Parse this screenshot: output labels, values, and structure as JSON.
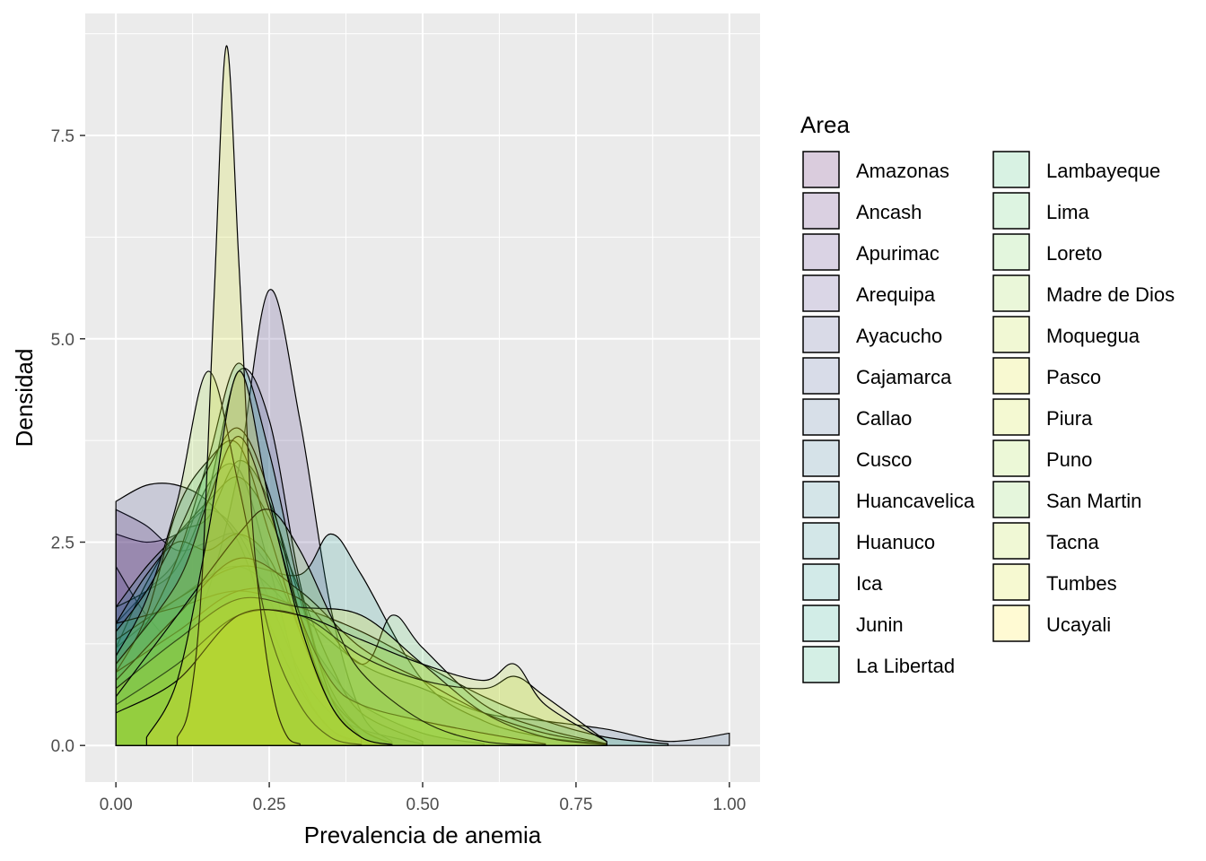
{
  "chart_data": {
    "type": "area",
    "subtype": "density",
    "title": "",
    "xlabel": "Prevalencia de anemia",
    "ylabel": "Densidad",
    "xlim": [
      -0.05,
      1.05
    ],
    "ylim": [
      -0.45,
      9.0
    ],
    "x_ticks": [
      0.0,
      0.25,
      0.5,
      0.75,
      1.0
    ],
    "x_tick_labels": [
      "0.00",
      "0.25",
      "0.50",
      "0.75",
      "1.00"
    ],
    "y_ticks": [
      0.0,
      2.5,
      5.0,
      7.5
    ],
    "y_tick_labels": [
      "0.0",
      "2.5",
      "5.0",
      "7.5"
    ],
    "grid": true,
    "fill_opacity": 0.2,
    "legend": {
      "title": "Area",
      "position": "right",
      "columns": 2,
      "entries": [
        "Amazonas",
        "Ancash",
        "Apurimac",
        "Arequipa",
        "Ayacucho",
        "Cajamarca",
        "Callao",
        "Cusco",
        "Huancavelica",
        "Huanuco",
        "Ica",
        "Junin",
        "La Libertad",
        "Lambayeque",
        "Lima",
        "Loreto",
        "Madre de Dios",
        "Moquegua",
        "Pasco",
        "Piura",
        "Puno",
        "San Martin",
        "Tacna",
        "Tumbes",
        "Ucayali"
      ]
    },
    "series": [
      {
        "name": "Amazonas",
        "color": "#440154",
        "x": [
          0,
          0.05,
          0.1,
          0.15,
          0.2,
          0.25,
          0.3,
          0.35,
          0.4,
          0.45,
          0.5
        ],
        "y": [
          2.6,
          2.5,
          2.6,
          2.9,
          2.6,
          1.8,
          0.9,
          0.4,
          0.2,
          0.1,
          0.02
        ]
      },
      {
        "name": "Ancash",
        "color": "#481467",
        "x": [
          0,
          0.05,
          0.1,
          0.15,
          0.2,
          0.25,
          0.3,
          0.35,
          0.4,
          0.5,
          0.6
        ],
        "y": [
          2.9,
          2.7,
          2.4,
          2.5,
          2.6,
          2.2,
          1.5,
          0.9,
          0.5,
          0.15,
          0.02
        ]
      },
      {
        "name": "Apurimac",
        "color": "#482576",
        "x": [
          0,
          0.05,
          0.1,
          0.15,
          0.2,
          0.25,
          0.3,
          0.35,
          0.4
        ],
        "y": [
          1.5,
          1.9,
          2.3,
          3.2,
          3.4,
          2.2,
          0.8,
          0.2,
          0.02
        ]
      },
      {
        "name": "Arequipa",
        "color": "#463480",
        "x": [
          0,
          0.05,
          0.1,
          0.15,
          0.2,
          0.25,
          0.3,
          0.35,
          0.4,
          0.45
        ],
        "y": [
          2.2,
          1.6,
          1.3,
          1.9,
          3.4,
          5.6,
          4.0,
          1.7,
          0.4,
          0.05
        ]
      },
      {
        "name": "Ayacucho",
        "color": "#414487",
        "x": [
          0,
          0.05,
          0.1,
          0.15,
          0.2,
          0.25,
          0.3,
          0.35,
          0.4,
          0.45
        ],
        "y": [
          3.0,
          3.2,
          3.2,
          3.0,
          2.5,
          1.5,
          0.7,
          0.2,
          0.05,
          0.01
        ]
      },
      {
        "name": "Cajamarca",
        "color": "#3B528B",
        "x": [
          0,
          0.05,
          0.1,
          0.15,
          0.2,
          0.25,
          0.3,
          0.35,
          0.4,
          0.45
        ],
        "y": [
          1.7,
          1.9,
          2.2,
          3.1,
          4.6,
          4.0,
          2.0,
          0.6,
          0.1,
          0.01
        ]
      },
      {
        "name": "Callao",
        "color": "#355F8D",
        "x": [
          0,
          0.1,
          0.2,
          0.3,
          0.4,
          0.5,
          0.6,
          0.7,
          0.8,
          0.9,
          1.0
        ],
        "y": [
          1.2,
          1.8,
          2.2,
          1.6,
          1.0,
          0.7,
          0.4,
          0.3,
          0.2,
          0.05,
          0.15
        ]
      },
      {
        "name": "Cusco",
        "color": "#2E6E8E",
        "x": [
          0,
          0.05,
          0.1,
          0.15,
          0.2,
          0.25,
          0.3,
          0.35,
          0.4,
          0.45
        ],
        "y": [
          1.2,
          2.0,
          2.6,
          2.8,
          3.5,
          3.0,
          1.8,
          0.7,
          0.2,
          0.03
        ]
      },
      {
        "name": "Huancavelica",
        "color": "#297B8E",
        "x": [
          0,
          0.05,
          0.1,
          0.15,
          0.2,
          0.25,
          0.3,
          0.35,
          0.4,
          0.5
        ],
        "y": [
          1.7,
          2.2,
          2.6,
          3.0,
          3.3,
          2.8,
          1.9,
          1.0,
          0.4,
          0.05
        ]
      },
      {
        "name": "Huanuco",
        "color": "#23898E",
        "x": [
          0,
          0.05,
          0.1,
          0.15,
          0.2,
          0.25,
          0.3,
          0.35,
          0.4,
          0.45
        ],
        "y": [
          1.5,
          2.1,
          2.5,
          2.4,
          2.6,
          2.3,
          1.4,
          0.6,
          0.2,
          0.02
        ]
      },
      {
        "name": "Ica",
        "color": "#1F968B",
        "x": [
          0,
          0.1,
          0.2,
          0.3,
          0.35,
          0.4,
          0.5,
          0.6,
          0.7,
          0.8
        ],
        "y": [
          1.3,
          1.8,
          2.2,
          2.1,
          2.6,
          2.1,
          0.8,
          0.3,
          0.1,
          0.02
        ]
      },
      {
        "name": "Junin",
        "color": "#20A386",
        "x": [
          0,
          0.05,
          0.1,
          0.15,
          0.2,
          0.25,
          0.3,
          0.35,
          0.4
        ],
        "y": [
          1.0,
          1.5,
          2.3,
          3.5,
          4.7,
          3.6,
          1.9,
          0.6,
          0.1
        ]
      },
      {
        "name": "La Libertad",
        "color": "#29AF7F",
        "x": [
          0,
          0.1,
          0.2,
          0.3,
          0.4,
          0.5,
          0.6,
          0.7,
          0.8,
          0.9
        ],
        "y": [
          1.5,
          1.7,
          1.9,
          1.7,
          1.4,
          1.0,
          0.6,
          0.3,
          0.1,
          0.02
        ]
      },
      {
        "name": "Lambayeque",
        "color": "#3CBC75",
        "x": [
          0,
          0.05,
          0.1,
          0.15,
          0.2,
          0.25,
          0.3,
          0.35,
          0.4,
          0.45
        ],
        "y": [
          0.9,
          1.6,
          2.9,
          3.5,
          3.7,
          2.6,
          1.4,
          0.5,
          0.1,
          0.01
        ]
      },
      {
        "name": "Lima",
        "color": "#56C667",
        "x": [
          0,
          0.1,
          0.2,
          0.3,
          0.4,
          0.45,
          0.5,
          0.6,
          0.7,
          0.8
        ],
        "y": [
          0.9,
          1.4,
          1.9,
          1.8,
          1.0,
          1.6,
          1.2,
          0.5,
          0.2,
          0.02
        ]
      },
      {
        "name": "Loreto",
        "color": "#75D054",
        "x": [
          0,
          0.05,
          0.1,
          0.15,
          0.2,
          0.25,
          0.3,
          0.35,
          0.4,
          0.45
        ],
        "y": [
          1.4,
          1.9,
          2.6,
          3.4,
          3.9,
          3.1,
          1.6,
          0.5,
          0.1,
          0.01
        ]
      },
      {
        "name": "Madre de Dios",
        "color": "#95D840",
        "x": [
          0,
          0.1,
          0.2,
          0.3,
          0.4,
          0.5,
          0.6,
          0.7,
          0.8
        ],
        "y": [
          0.8,
          1.6,
          2.3,
          1.9,
          1.2,
          0.8,
          0.4,
          0.15,
          0.02
        ]
      },
      {
        "name": "Moquegua",
        "color": "#B8DE29",
        "x": [
          0,
          0.1,
          0.15,
          0.2,
          0.25,
          0.3,
          0.35,
          0.4,
          0.5,
          0.6,
          0.7
        ],
        "y": [
          1.0,
          2.0,
          3.0,
          3.8,
          2.9,
          1.6,
          0.8,
          0.5,
          0.3,
          0.15,
          0.02
        ]
      },
      {
        "name": "Pasco",
        "color": "#DCE318",
        "x": [
          0,
          0.1,
          0.2,
          0.3,
          0.4,
          0.5,
          0.6,
          0.7,
          0.8
        ],
        "y": [
          0.7,
          1.3,
          1.8,
          1.7,
          1.6,
          1.0,
          0.4,
          0.1,
          0.01
        ]
      },
      {
        "name": "Piura",
        "color": "#C8E020",
        "x": [
          0,
          0.1,
          0.2,
          0.3,
          0.4,
          0.5,
          0.6,
          0.65,
          0.7,
          0.8
        ],
        "y": [
          0.5,
          1.0,
          1.6,
          1.6,
          1.1,
          0.8,
          0.7,
          0.85,
          0.6,
          0.05
        ]
      },
      {
        "name": "Puno",
        "color": "#A0DA39",
        "x": [
          0,
          0.05,
          0.1,
          0.15,
          0.2,
          0.25,
          0.3,
          0.35,
          0.4
        ],
        "y": [
          1.1,
          1.8,
          3.0,
          4.6,
          3.2,
          1.4,
          0.5,
          0.1,
          0.01
        ]
      },
      {
        "name": "San Martin",
        "color": "#7FD34E",
        "x": [
          0,
          0.1,
          0.2,
          0.25,
          0.3,
          0.35,
          0.4,
          0.5,
          0.6,
          0.7
        ],
        "y": [
          0.6,
          1.6,
          2.6,
          2.9,
          2.4,
          1.6,
          0.9,
          0.3,
          0.05,
          0.01
        ]
      },
      {
        "name": "Tacna",
        "color": "#B5DE2B",
        "x": [
          0,
          0.1,
          0.2,
          0.3,
          0.4,
          0.5,
          0.6,
          0.65,
          0.7,
          0.8
        ],
        "y": [
          0.4,
          0.8,
          1.6,
          1.6,
          1.3,
          1.0,
          0.8,
          1.0,
          0.5,
          0.05
        ]
      },
      {
        "name": "Tumbes",
        "color": "#D2E21B",
        "x": [
          0.1,
          0.12,
          0.14,
          0.16,
          0.18,
          0.2,
          0.22,
          0.24,
          0.26,
          0.28,
          0.3
        ],
        "y": [
          0.1,
          0.5,
          2.0,
          5.5,
          8.6,
          6.0,
          3.0,
          1.4,
          0.5,
          0.1,
          0.02
        ]
      },
      {
        "name": "Ucayali",
        "color": "#FDE725",
        "x": [
          0.05,
          0.1,
          0.15,
          0.2,
          0.25,
          0.3,
          0.35,
          0.4,
          0.45
        ],
        "y": [
          0.1,
          0.8,
          2.6,
          4.6,
          3.0,
          1.5,
          0.5,
          0.1,
          0.01
        ]
      }
    ]
  }
}
